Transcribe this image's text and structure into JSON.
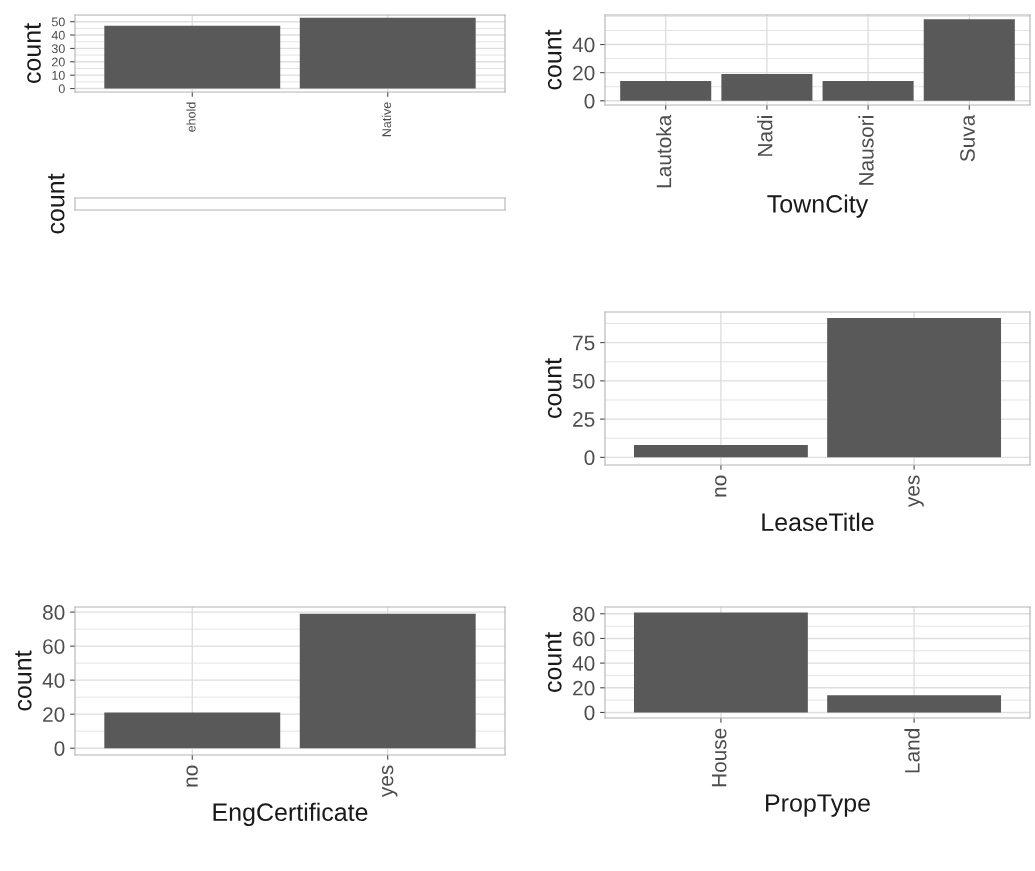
{
  "chart_data": [
    {
      "type": "bar",
      "ylabel": "count",
      "categories": [
        "ehold",
        "Native"
      ],
      "values": [
        47,
        53
      ],
      "color": "#595959",
      "ylim": [
        -2.6,
        55
      ],
      "yticks": [
        0,
        10,
        20,
        30,
        40,
        50
      ],
      "grid": true
    },
    {
      "type": "bar",
      "xlabel": "TownCity",
      "ylabel": "count",
      "categories": [
        "Lautoka",
        "Nadi",
        "Nausori",
        "Suva"
      ],
      "values": [
        14,
        19,
        14,
        58
      ],
      "color": "#595959",
      "ylim": [
        -3,
        61
      ],
      "yticks": [
        0,
        20,
        40
      ],
      "grid": true
    },
    {
      "type": "other",
      "ylabel": "count"
    },
    {
      "type": "bar",
      "xlabel": "LeaseTitle",
      "ylabel": "count",
      "categories": [
        "no",
        "yes"
      ],
      "values": [
        8,
        91
      ],
      "color": "#595959",
      "ylim": [
        -5,
        95
      ],
      "yticks": [
        0,
        25,
        50,
        75
      ],
      "grid": true
    },
    {
      "type": "bar",
      "xlabel": "EngCertificate",
      "ylabel": "count",
      "categories": [
        "no",
        "yes"
      ],
      "values": [
        21,
        79
      ],
      "color": "#595959",
      "ylim": [
        -4,
        83
      ],
      "yticks": [
        0,
        20,
        40,
        60,
        80
      ],
      "grid": true
    },
    {
      "type": "bar",
      "xlabel": "PropType",
      "ylabel": "count",
      "categories": [
        "House",
        "Land"
      ],
      "values": [
        81,
        14
      ],
      "color": "#595959",
      "ylim": [
        -4.5,
        85.5
      ],
      "yticks": [
        0,
        20,
        40,
        60,
        80
      ],
      "grid": true
    }
  ]
}
